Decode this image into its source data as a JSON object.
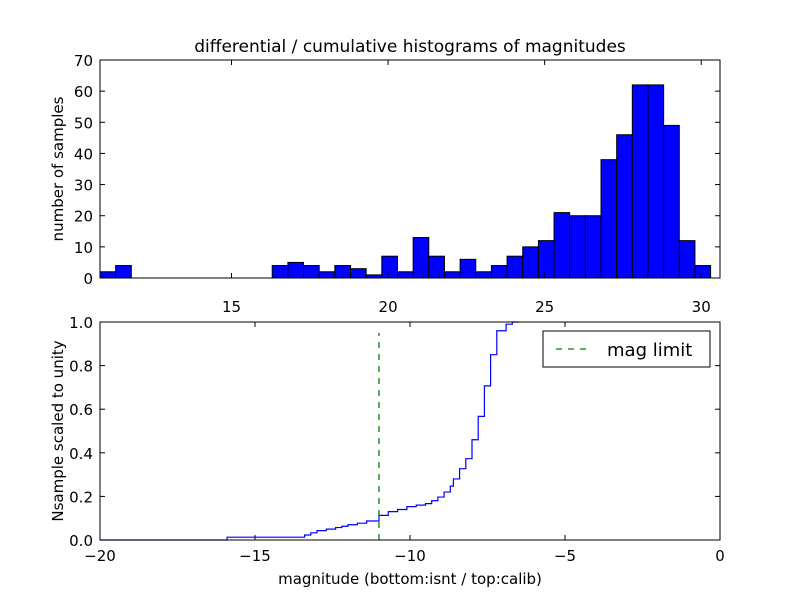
{
  "chart_data": [
    {
      "type": "bar",
      "title": "differential / cumulative histograms of magnitudes",
      "xlabel": "",
      "ylabel": "number of samples",
      "xlim": [
        10.8,
        30.6
      ],
      "ylim": [
        0,
        70
      ],
      "xticks": [
        15,
        20,
        25,
        30
      ],
      "yticks": [
        0,
        10,
        20,
        30,
        40,
        50,
        60,
        70
      ],
      "x_tick_position": "top",
      "grid": false,
      "bar_color": "#0000ff",
      "bins": [
        {
          "x0": 10.8,
          "x1": 11.3,
          "value": 2
        },
        {
          "x0": 11.3,
          "x1": 11.8,
          "value": 4
        },
        {
          "x0": 11.8,
          "x1": 12.3,
          "value": 0
        },
        {
          "x0": 12.3,
          "x1": 12.8,
          "value": 0
        },
        {
          "x0": 12.8,
          "x1": 13.3,
          "value": 0
        },
        {
          "x0": 13.3,
          "x1": 13.8,
          "value": 0
        },
        {
          "x0": 13.8,
          "x1": 14.3,
          "value": 0
        },
        {
          "x0": 14.3,
          "x1": 14.8,
          "value": 0
        },
        {
          "x0": 14.8,
          "x1": 15.3,
          "value": 0
        },
        {
          "x0": 15.3,
          "x1": 15.8,
          "value": 0
        },
        {
          "x0": 15.8,
          "x1": 16.3,
          "value": 0
        },
        {
          "x0": 16.3,
          "x1": 16.8,
          "value": 4
        },
        {
          "x0": 16.8,
          "x1": 17.3,
          "value": 5
        },
        {
          "x0": 17.3,
          "x1": 17.8,
          "value": 4
        },
        {
          "x0": 17.8,
          "x1": 18.3,
          "value": 2
        },
        {
          "x0": 18.3,
          "x1": 18.8,
          "value": 4
        },
        {
          "x0": 18.8,
          "x1": 19.3,
          "value": 3
        },
        {
          "x0": 19.3,
          "x1": 19.8,
          "value": 1
        },
        {
          "x0": 19.8,
          "x1": 20.3,
          "value": 7
        },
        {
          "x0": 20.3,
          "x1": 20.8,
          "value": 2
        },
        {
          "x0": 20.8,
          "x1": 21.3,
          "value": 13
        },
        {
          "x0": 21.3,
          "x1": 21.8,
          "value": 7
        },
        {
          "x0": 21.8,
          "x1": 22.3,
          "value": 2
        },
        {
          "x0": 22.3,
          "x1": 22.8,
          "value": 6
        },
        {
          "x0": 22.8,
          "x1": 23.3,
          "value": 2
        },
        {
          "x0": 23.3,
          "x1": 23.8,
          "value": 4
        },
        {
          "x0": 23.8,
          "x1": 24.3,
          "value": 7
        },
        {
          "x0": 24.3,
          "x1": 24.8,
          "value": 10
        },
        {
          "x0": 24.8,
          "x1": 25.3,
          "value": 12
        },
        {
          "x0": 25.3,
          "x1": 25.8,
          "value": 21
        },
        {
          "x0": 25.8,
          "x1": 26.3,
          "value": 20
        },
        {
          "x0": 26.3,
          "x1": 26.8,
          "value": 20
        },
        {
          "x0": 26.8,
          "x1": 27.3,
          "value": 38
        },
        {
          "x0": 27.3,
          "x1": 27.8,
          "value": 46
        },
        {
          "x0": 27.8,
          "x1": 28.3,
          "value": 62
        },
        {
          "x0": 28.3,
          "x1": 28.8,
          "value": 62
        },
        {
          "x0": 28.8,
          "x1": 29.3,
          "value": 49
        },
        {
          "x0": 29.3,
          "x1": 29.8,
          "value": 12
        },
        {
          "x0": 29.8,
          "x1": 30.3,
          "value": 4
        }
      ]
    },
    {
      "type": "line",
      "title": "",
      "xlabel": "magnitude (bottom:isnt / top:calib)",
      "ylabel": "Nsample scaled to unity",
      "xlim": [
        -20,
        0
      ],
      "ylim": [
        0,
        1
      ],
      "xticks": [
        -20,
        -15,
        -10,
        -5,
        0
      ],
      "yticks": [
        0.0,
        0.2,
        0.4,
        0.6,
        0.8,
        1.0
      ],
      "grid": false,
      "legend_position": "top-right",
      "series": [
        {
          "name": "",
          "style": "step",
          "color": "#0000ff",
          "points": [
            [
              -20.0,
              0.0
            ],
            [
              -15.9,
              0.0
            ],
            [
              -15.9,
              0.013
            ],
            [
              -13.4,
              0.013
            ],
            [
              -13.4,
              0.023
            ],
            [
              -13.2,
              0.023
            ],
            [
              -13.2,
              0.033
            ],
            [
              -13.0,
              0.033
            ],
            [
              -13.0,
              0.043
            ],
            [
              -12.7,
              0.043
            ],
            [
              -12.7,
              0.05
            ],
            [
              -12.4,
              0.05
            ],
            [
              -12.4,
              0.057
            ],
            [
              -12.2,
              0.057
            ],
            [
              -12.2,
              0.063
            ],
            [
              -12.0,
              0.063
            ],
            [
              -12.0,
              0.07
            ],
            [
              -11.7,
              0.07
            ],
            [
              -11.7,
              0.077
            ],
            [
              -11.4,
              0.077
            ],
            [
              -11.4,
              0.087
            ],
            [
              -11.0,
              0.087
            ],
            [
              -11.0,
              0.113
            ],
            [
              -10.7,
              0.113
            ],
            [
              -10.7,
              0.13
            ],
            [
              -10.4,
              0.13
            ],
            [
              -10.4,
              0.14
            ],
            [
              -10.1,
              0.14
            ],
            [
              -10.1,
              0.153
            ],
            [
              -9.8,
              0.153
            ],
            [
              -9.8,
              0.16
            ],
            [
              -9.5,
              0.16
            ],
            [
              -9.5,
              0.167
            ],
            [
              -9.3,
              0.167
            ],
            [
              -9.3,
              0.18
            ],
            [
              -9.1,
              0.18
            ],
            [
              -9.1,
              0.197
            ],
            [
              -8.9,
              0.197
            ],
            [
              -8.9,
              0.22
            ],
            [
              -8.7,
              0.22
            ],
            [
              -8.7,
              0.247
            ],
            [
              -8.6,
              0.247
            ],
            [
              -8.6,
              0.28
            ],
            [
              -8.4,
              0.28
            ],
            [
              -8.4,
              0.327
            ],
            [
              -8.2,
              0.327
            ],
            [
              -8.2,
              0.373
            ],
            [
              -8.0,
              0.373
            ],
            [
              -8.0,
              0.46
            ],
            [
              -7.8,
              0.46
            ],
            [
              -7.8,
              0.567
            ],
            [
              -7.6,
              0.567
            ],
            [
              -7.6,
              0.707
            ],
            [
              -7.4,
              0.707
            ],
            [
              -7.4,
              0.85
            ],
            [
              -7.2,
              0.85
            ],
            [
              -7.2,
              0.96
            ],
            [
              -6.9,
              0.96
            ],
            [
              -6.9,
              0.99
            ],
            [
              -6.7,
              0.99
            ],
            [
              -6.7,
              1.0
            ],
            [
              -6.5,
              1.0
            ]
          ]
        },
        {
          "name": "mag limit",
          "style": "dashed",
          "color": "#008000",
          "points": [
            [
              -11.0,
              0.0
            ],
            [
              -11.0,
              0.95
            ]
          ]
        }
      ]
    }
  ]
}
